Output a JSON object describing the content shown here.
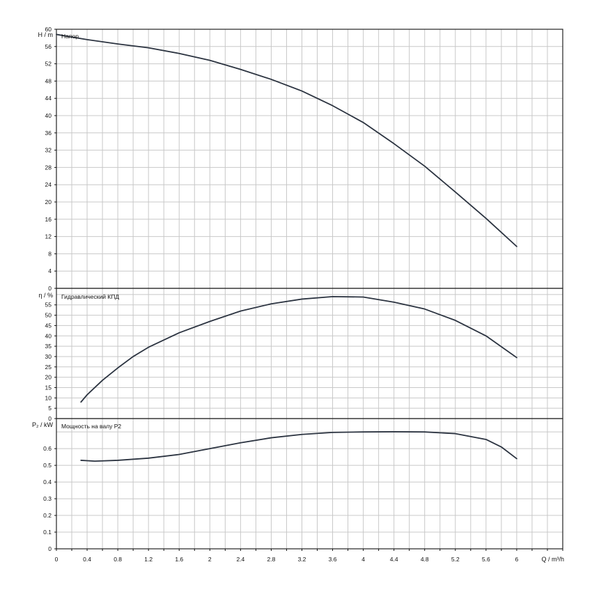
{
  "chart_data": [
    {
      "type": "line",
      "panel": "head",
      "title": "Напор",
      "ylabel": "H / m",
      "xlabel": "Q / m³/h",
      "xlim": [
        0,
        6.6
      ],
      "ylim": [
        0,
        60
      ],
      "yticks": [
        0,
        4,
        8,
        12,
        16,
        20,
        24,
        28,
        32,
        36,
        40,
        44,
        48,
        52,
        56,
        60
      ],
      "grid": true,
      "series": [
        {
          "x": [
            0,
            0.4,
            0.8,
            1.2,
            1.6,
            2.0,
            2.4,
            2.8,
            3.2,
            3.6,
            4.0,
            4.4,
            4.8,
            5.2,
            5.6,
            6.0
          ],
          "y": [
            58.8,
            57.6,
            56.6,
            55.7,
            54.4,
            52.8,
            50.7,
            48.4,
            45.7,
            42.3,
            38.4,
            33.5,
            28.3,
            22.3,
            16.2,
            9.7
          ]
        }
      ]
    },
    {
      "type": "line",
      "panel": "efficiency",
      "title": "Гидравлический КПД",
      "ylabel": "η / %",
      "xlim": [
        0,
        6.6
      ],
      "ylim": [
        0,
        63
      ],
      "yticks": [
        0,
        5,
        10,
        15,
        20,
        25,
        30,
        35,
        40,
        45,
        50,
        55
      ],
      "grid": true,
      "series": [
        {
          "x": [
            0.32,
            0.4,
            0.6,
            0.8,
            1.0,
            1.2,
            1.6,
            2.0,
            2.4,
            2.8,
            3.2,
            3.6,
            4.0,
            4.4,
            4.8,
            5.2,
            5.6,
            6.0
          ],
          "y": [
            8,
            11.5,
            18.5,
            24.5,
            30,
            34.5,
            41.5,
            47,
            52,
            55.5,
            57.8,
            59,
            58.8,
            56.3,
            53,
            47.5,
            40,
            29.5
          ]
        }
      ]
    },
    {
      "type": "line",
      "panel": "power",
      "title": "Мощность на валу P2",
      "ylabel": "P₂ / kW",
      "xlim": [
        0,
        6.6
      ],
      "ylim": [
        0,
        0.78
      ],
      "yticks": [
        0,
        0.1,
        0.2,
        0.3,
        0.4,
        0.5,
        0.6
      ],
      "xticks": [
        0,
        0.4,
        0.8,
        1.2,
        1.6,
        2,
        2.4,
        2.8,
        3.2,
        3.6,
        4,
        4.4,
        4.8,
        5.2,
        5.6,
        6
      ],
      "grid": true,
      "series": [
        {
          "x": [
            0.32,
            0.5,
            0.8,
            1.2,
            1.6,
            2.0,
            2.4,
            2.8,
            3.2,
            3.6,
            4.0,
            4.4,
            4.8,
            5.2,
            5.6,
            5.8,
            6.0
          ],
          "y": [
            0.53,
            0.525,
            0.53,
            0.543,
            0.565,
            0.6,
            0.635,
            0.665,
            0.685,
            0.697,
            0.7,
            0.701,
            0.7,
            0.69,
            0.655,
            0.61,
            0.54
          ]
        }
      ]
    }
  ]
}
